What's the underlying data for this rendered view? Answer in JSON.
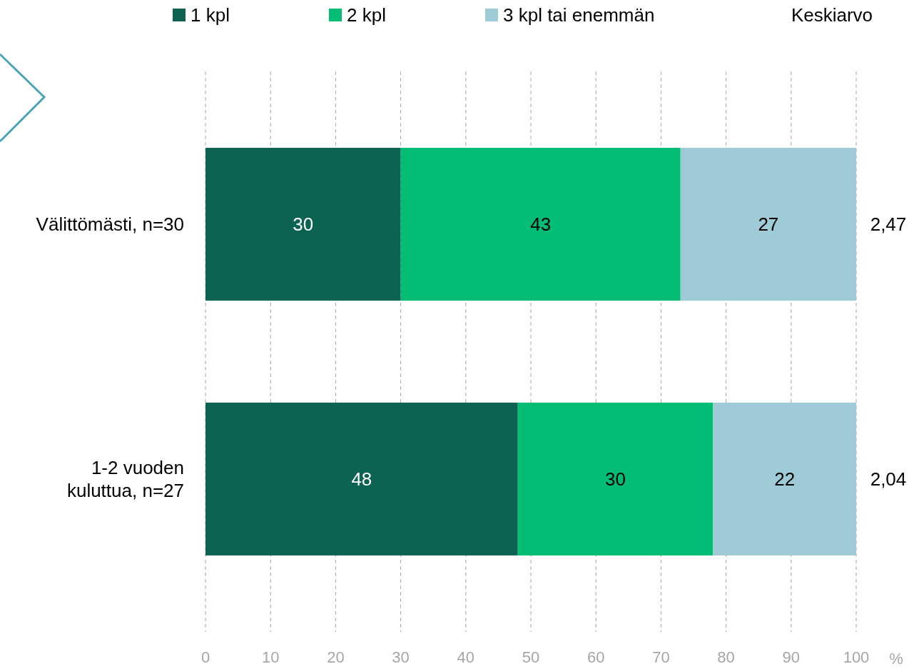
{
  "chart_data": {
    "type": "bar",
    "orientation": "horizontal",
    "stacked": true,
    "categories": [
      "Välittömästi, n=30",
      "1-2 vuoden kuluttua, n=27"
    ],
    "series": [
      {
        "name": "1 kpl",
        "color": "#0d6352",
        "values": [
          30,
          48
        ]
      },
      {
        "name": "2 kpl",
        "color": "#03bd74",
        "values": [
          43,
          30
        ]
      },
      {
        "name": "3 kpl tai enemmän",
        "color": "#9fcbd6",
        "values": [
          27,
          22
        ]
      }
    ],
    "xlim": [
      0,
      100
    ],
    "xticks": [
      0,
      10,
      20,
      30,
      40,
      50,
      60,
      70,
      80,
      90,
      100
    ],
    "xlabel": "%",
    "grid": "x",
    "legend": "top",
    "data_labels": true,
    "annotations": [
      "Keskiarvo",
      "2,47",
      "2,04"
    ]
  }
}
